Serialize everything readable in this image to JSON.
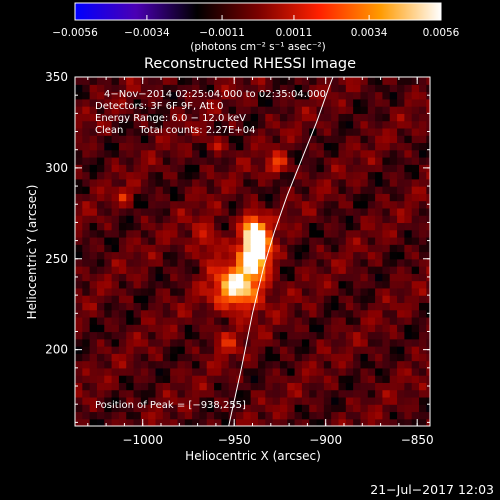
{
  "chart_data": {
    "type": "heatmap",
    "title": "Reconstructed RHESSI Image",
    "xlabel": "Heliocentric X (arcsec)",
    "ylabel": "Heliocentric Y (arcsec)",
    "xlim": [
      -1037,
      -843
    ],
    "ylim": [
      158,
      350
    ],
    "x_ticks": [
      -1000,
      -950,
      -900,
      -850
    ],
    "x_tick_labels": [
      "−1000",
      "−950",
      "−900",
      "−850"
    ],
    "y_ticks": [
      200,
      250,
      300,
      350
    ],
    "y_tick_labels": [
      "200",
      "250",
      "300",
      "350"
    ],
    "colorbar": {
      "ticks": [
        -0.0056,
        -0.0034,
        -0.0011,
        0.0011,
        0.0034,
        0.0056
      ],
      "tick_labels": [
        "−0.0056",
        "−0.0034",
        "−0.0011",
        "0.0011",
        "0.0034",
        "0.0056"
      ],
      "units_label": "(photons cm⁻² s⁻¹ asec⁻²)",
      "colors": [
        "#0000ff",
        "#4b00b4",
        "#000000",
        "#7a0000",
        "#ff2000",
        "#ff9a00",
        "#ffffff"
      ]
    },
    "annotations": [
      "4−Nov−2014 02:25:04.000 to 02:35:04.000",
      "Detectors: 3F 6F 9F, Att 0",
      "Energy Range: 6.0 − 12.0 keV",
      "Clean     Total counts: 2.27E+04"
    ],
    "peak_label": "Position of Peak = [−938,255]",
    "peak": [
      -938,
      255
    ],
    "sources": [
      {
        "x": -938,
        "y": 255,
        "sx": 6,
        "sy": 10,
        "amp": 0.0056
      },
      {
        "x": -948,
        "y": 234,
        "sx": 9,
        "sy": 9,
        "amp": 0.0048
      },
      {
        "x": -940,
        "y": 268,
        "sx": 4,
        "sy": 6,
        "amp": 0.0028
      },
      {
        "x": -926,
        "y": 302,
        "sx": 4,
        "sy": 4,
        "amp": 0.0026
      },
      {
        "x": -960,
        "y": 313,
        "sx": 3,
        "sy": 3,
        "amp": 0.002
      },
      {
        "x": -1010,
        "y": 285,
        "sx": 3,
        "sy": 3,
        "amp": 0.0018
      },
      {
        "x": -955,
        "y": 205,
        "sx": 5,
        "sy": 5,
        "amp": 0.0016
      },
      {
        "x": -965,
        "y": 260,
        "sx": 6,
        "sy": 8,
        "amp": 0.0018
      }
    ],
    "limb_curve": [
      [
        -953,
        158
      ],
      [
        -946,
        190
      ],
      [
        -940,
        220
      ],
      [
        -934,
        245
      ],
      [
        -928,
        265
      ],
      [
        -921,
        285
      ],
      [
        -913,
        305
      ],
      [
        -905,
        325
      ],
      [
        -898,
        345
      ],
      [
        -896,
        350
      ]
    ]
  },
  "footer": {
    "timestamp": "21−Jul−2017 12:03"
  }
}
